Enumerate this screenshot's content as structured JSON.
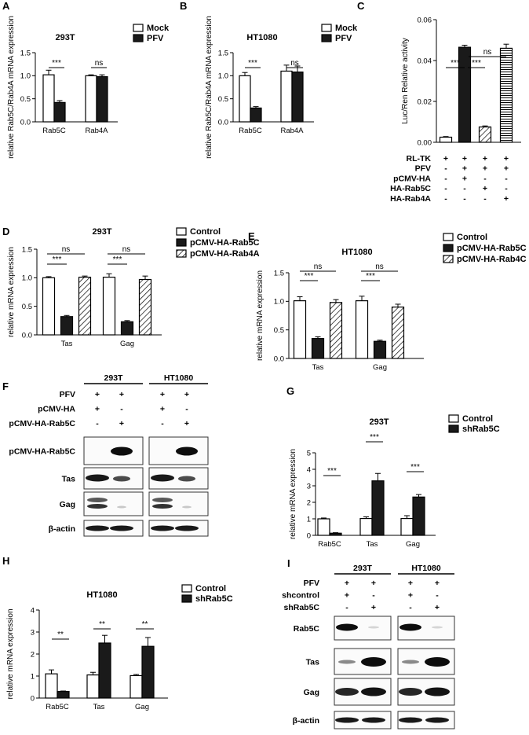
{
  "panels": {
    "A": {
      "letter": "A",
      "chart_data": {
        "type": "bar",
        "title": "293T",
        "ylabel": "relative Rab5C/Rab4A mRNA expression",
        "ylim": [
          0,
          1.5
        ],
        "yticks": [
          "0.0",
          "0.5",
          "1.0",
          "1.5"
        ],
        "categories": [
          "Rab5C",
          "Rab4A"
        ],
        "series": [
          {
            "name": "Mock",
            "values": [
              1.02,
              1.0
            ],
            "errors": [
              0.1,
              0.02
            ],
            "fill": "#ffffff"
          },
          {
            "name": "PFV",
            "values": [
              0.42,
              0.98
            ],
            "errors": [
              0.04,
              0.04
            ],
            "fill": "#1a1a1a"
          }
        ],
        "significance": [
          "***",
          "ns"
        ]
      }
    },
    "B": {
      "letter": "B",
      "chart_data": {
        "type": "bar",
        "title": "HT1080",
        "ylabel": "relative Rab5C/Rab4A mRNA expression",
        "ylim": [
          0,
          1.5
        ],
        "yticks": [
          "0.0",
          "0.5",
          "1.0",
          "1.5"
        ],
        "categories": [
          "Rab5C",
          "Rab4A"
        ],
        "series": [
          {
            "name": "Mock",
            "values": [
              1.0,
              1.1
            ],
            "errors": [
              0.07,
              0.13
            ],
            "fill": "#ffffff"
          },
          {
            "name": "PFV",
            "values": [
              0.3,
              1.08
            ],
            "errors": [
              0.03,
              0.13
            ],
            "fill": "#1a1a1a"
          }
        ],
        "significance": [
          "***",
          "ns"
        ]
      }
    },
    "C": {
      "letter": "C",
      "chart_data": {
        "type": "bar",
        "ylabel": "Luc/Ren Relative activity",
        "ylim": [
          0,
          0.06
        ],
        "yticks": [
          "0.00",
          "0.02",
          "0.04",
          "0.06"
        ],
        "values": [
          0.0025,
          0.0465,
          0.0075,
          0.046
        ],
        "errors": [
          0.0003,
          0.001,
          0.0005,
          0.002
        ],
        "fills": [
          "#ffffff",
          "#1a1a1a",
          "#ffffff",
          "#ffffff"
        ],
        "patterns": [
          "none",
          "solid",
          "diagonal",
          "horizontal"
        ],
        "significance": [
          "***",
          "***",
          "ns"
        ],
        "conditions": [
          {
            "label": "RL-TK",
            "signs": [
              "+",
              "+",
              "+",
              "+"
            ]
          },
          {
            "label": "PFV",
            "signs": [
              "-",
              "+",
              "+",
              "+"
            ]
          },
          {
            "label": "pCMV-HA",
            "signs": [
              "-",
              "+",
              "-",
              "-"
            ]
          },
          {
            "label": "HA-Rab5C",
            "signs": [
              "-",
              "-",
              "+",
              "-"
            ]
          },
          {
            "label": "HA-Rab4A",
            "signs": [
              "-",
              "-",
              "-",
              "+"
            ]
          }
        ]
      }
    },
    "D": {
      "letter": "D",
      "chart_data": {
        "type": "bar",
        "title": "293T",
        "ylabel": "relative mRNA expression",
        "ylim": [
          0,
          1.5
        ],
        "yticks": [
          "0.0",
          "0.5",
          "1.0",
          "1.5"
        ],
        "categories": [
          "Tas",
          "Gag"
        ],
        "series": [
          {
            "name": "Control",
            "values": [
              1.0,
              1.01
            ],
            "errors": [
              0.02,
              0.06
            ]
          },
          {
            "name": "pCMV-HA-Rab5C",
            "values": [
              0.32,
              0.23
            ],
            "errors": [
              0.02,
              0.02
            ]
          },
          {
            "name": "pCMV-HA-Rab4A",
            "values": [
              1.01,
              0.97
            ],
            "errors": [
              0.02,
              0.06
            ]
          }
        ],
        "significance": [
          "***",
          "ns",
          "***",
          "ns"
        ]
      }
    },
    "E": {
      "letter": "E",
      "chart_data": {
        "type": "bar",
        "title": "HT1080",
        "ylabel": "relative mRNA expression",
        "ylim": [
          0,
          1.5
        ],
        "yticks": [
          "0.0",
          "0.5",
          "1.0",
          "1.5"
        ],
        "categories": [
          "Tas",
          "Gag"
        ],
        "series": [
          {
            "name": "Control",
            "values": [
              1.01,
              1.01
            ],
            "errors": [
              0.07,
              0.08
            ]
          },
          {
            "name": "pCMV-HA-Rab5C",
            "values": [
              0.35,
              0.3
            ],
            "errors": [
              0.03,
              0.02
            ]
          },
          {
            "name": "pCMV-HA-Rab4C",
            "values": [
              0.98,
              0.9
            ],
            "errors": [
              0.05,
              0.05
            ]
          }
        ],
        "significance": [
          "***",
          "ns",
          "***",
          "ns"
        ]
      }
    },
    "F": {
      "letter": "F",
      "groups": [
        "293T",
        "HT1080"
      ],
      "conditions": [
        {
          "label": "PFV",
          "signs": [
            "+",
            "+",
            "+",
            "+"
          ]
        },
        {
          "label": "pCMV-HA",
          "signs": [
            "+",
            "-",
            "+",
            "-"
          ]
        },
        {
          "label": "pCMV-HA-Rab5C",
          "signs": [
            "-",
            "+",
            "-",
            "+"
          ]
        }
      ],
      "blots": [
        "pCMV-HA-Rab5C",
        "Tas",
        "Gag",
        "β-actin"
      ]
    },
    "G": {
      "letter": "G",
      "chart_data": {
        "type": "bar",
        "title": "293T",
        "ylabel": "relative mRNA expression",
        "ylim": [
          0,
          5
        ],
        "yticks": [
          "0",
          "1",
          "2",
          "3",
          "4",
          "5"
        ],
        "categories": [
          "Rab5C",
          "Tas",
          "Gag"
        ],
        "series": [
          {
            "name": "Control",
            "values": [
              1.0,
              1.02,
              1.02
            ],
            "errors": [
              0.05,
              0.1,
              0.17
            ],
            "fill": "#ffffff"
          },
          {
            "name": "shRab5C",
            "values": [
              0.13,
              3.3,
              2.32
            ],
            "errors": [
              0.03,
              0.45,
              0.15
            ],
            "fill": "#1a1a1a"
          }
        ],
        "significance": [
          "***",
          "***",
          "***"
        ]
      }
    },
    "H": {
      "letter": "H",
      "chart_data": {
        "type": "bar",
        "title": "HT1080",
        "ylabel": "relative mRNA expression",
        "ylim": [
          0,
          4
        ],
        "yticks": [
          "0",
          "1",
          "2",
          "3",
          "4"
        ],
        "categories": [
          "Rab5C",
          "Tas",
          "Gag"
        ],
        "series": [
          {
            "name": "Control",
            "values": [
              1.1,
              1.05,
              1.02
            ],
            "errors": [
              0.18,
              0.12,
              0.05
            ],
            "fill": "#ffffff"
          },
          {
            "name": "shRab5C",
            "values": [
              0.3,
              2.5,
              2.35
            ],
            "errors": [
              0.02,
              0.35,
              0.4
            ],
            "fill": "#1a1a1a"
          }
        ],
        "significance": [
          "**",
          "**",
          "**"
        ]
      }
    },
    "I": {
      "letter": "I",
      "groups": [
        "293T",
        "HT1080"
      ],
      "conditions": [
        {
          "label": "PFV",
          "signs": [
            "+",
            "+",
            "+",
            "+"
          ]
        },
        {
          "label": "shcontrol",
          "signs": [
            "+",
            "-",
            "+",
            "-"
          ]
        },
        {
          "label": "shRab5C",
          "signs": [
            "-",
            "+",
            "-",
            "+"
          ]
        }
      ],
      "blots": [
        "Rab5C",
        "Tas",
        "Gag",
        "β-actin"
      ]
    }
  }
}
